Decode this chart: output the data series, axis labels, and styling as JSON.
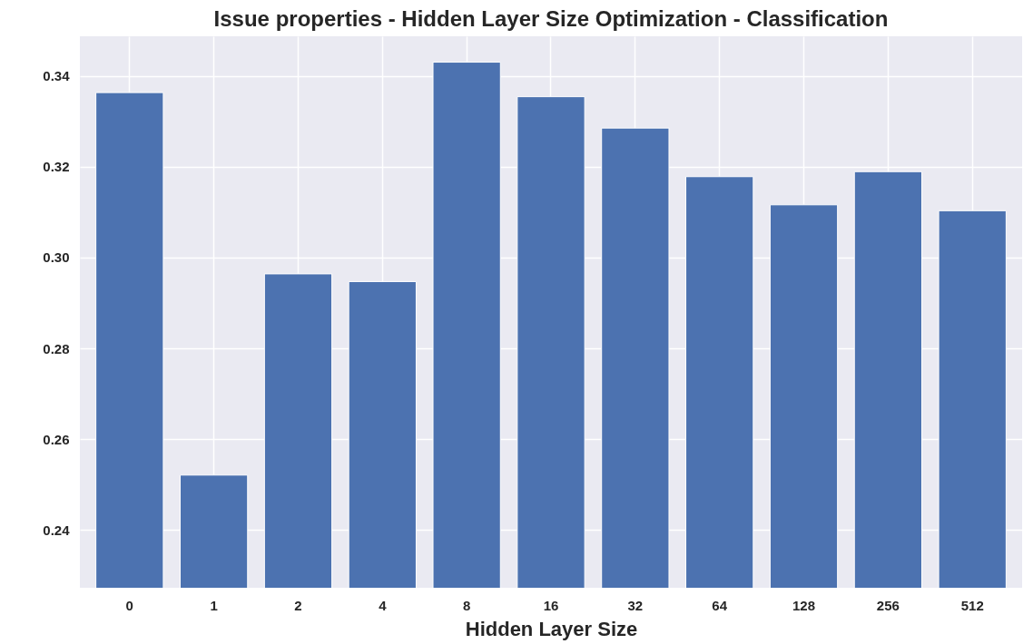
{
  "chart_data": {
    "type": "bar",
    "title": "Issue properties - Hidden Layer Size Optimization - Classification",
    "xlabel": "Hidden Layer Size",
    "categories": [
      "0",
      "1",
      "2",
      "4",
      "8",
      "16",
      "32",
      "64",
      "128",
      "256",
      "512"
    ],
    "values": [
      0.3363,
      0.2521,
      0.2964,
      0.2947,
      0.343,
      0.3354,
      0.3285,
      0.3178,
      0.3116,
      0.3189,
      0.3103
    ],
    "color": "#4c72b0",
    "ylim": [
      0.2273,
      0.3487
    ],
    "yticks": [
      0.24,
      0.26,
      0.28,
      {
        "value": 0.3,
        "label": "0.30"
      },
      0.32,
      0.34
    ],
    "grid": true
  }
}
